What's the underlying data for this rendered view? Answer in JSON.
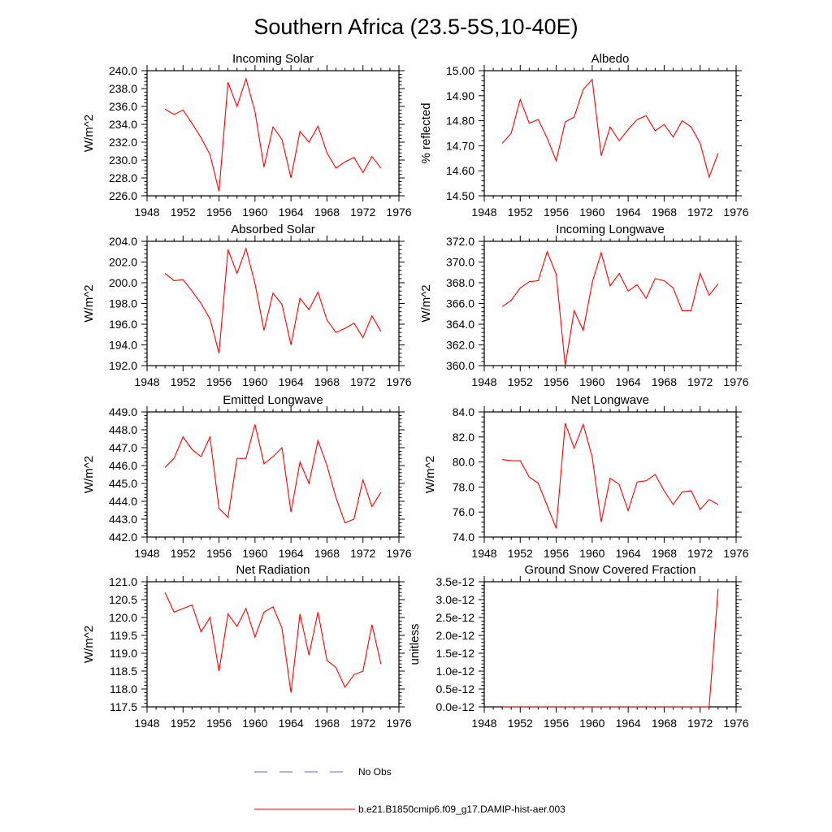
{
  "title": "Southern Africa (23.5-5S,10-40E)",
  "chart_data": [
    {
      "type": "line",
      "title": "Incoming Solar",
      "ylabel": "W/m^2",
      "xlim": [
        1948,
        1976
      ],
      "ylim": [
        226,
        240
      ],
      "xticks": [
        1948,
        1952,
        1956,
        1960,
        1964,
        1968,
        1972,
        1976
      ],
      "xtick_labels": [
        "1948",
        "1952",
        "1956",
        "1960",
        "1964",
        "1968",
        "1972",
        "1976"
      ],
      "yticks": [
        226,
        228,
        230,
        232,
        234,
        236,
        238,
        240
      ],
      "ytick_labels": [
        "226.0",
        "228.0",
        "230.0",
        "232.0",
        "234.0",
        "236.0",
        "238.0",
        "240.0"
      ],
      "series": [
        {
          "name": "b.e21.B1850cmip6.f09_g17.DAMIP-hist-aer.003",
          "color": "#ff0000",
          "x": [
            1950,
            1951,
            1952,
            1953,
            1954,
            1955,
            1956,
            1957,
            1958,
            1959,
            1960,
            1961,
            1962,
            1963,
            1964,
            1965,
            1966,
            1967,
            1968,
            1969,
            1970,
            1971,
            1972,
            1973,
            1974
          ],
          "y": [
            235.7,
            235.1,
            235.6,
            234.1,
            232.5,
            230.6,
            226.5,
            238.7,
            236.0,
            239.1,
            235.4,
            229.2,
            233.7,
            232.3,
            228.0,
            233.2,
            232.0,
            233.8,
            230.8,
            229.1,
            229.8,
            230.3,
            228.6,
            230.4,
            229.1
          ]
        }
      ]
    },
    {
      "type": "line",
      "title": "Albedo",
      "ylabel": "% reflected",
      "xlim": [
        1948,
        1976
      ],
      "ylim": [
        14.5,
        15.0
      ],
      "xticks": [
        1948,
        1952,
        1956,
        1960,
        1964,
        1968,
        1972,
        1976
      ],
      "xtick_labels": [
        "1948",
        "1952",
        "1956",
        "1960",
        "1964",
        "1968",
        "1972",
        "1976"
      ],
      "yticks": [
        14.5,
        14.6,
        14.7,
        14.8,
        14.9,
        15.0
      ],
      "ytick_labels": [
        "14.50",
        "14.60",
        "14.70",
        "14.80",
        "14.90",
        "15.00"
      ],
      "series": [
        {
          "name": "b.e21.B1850cmip6.f09_g17.DAMIP-hist-aer.003",
          "color": "#ff0000",
          "x": [
            1950,
            1951,
            1952,
            1953,
            1954,
            1955,
            1956,
            1957,
            1958,
            1959,
            1960,
            1961,
            1962,
            1963,
            1964,
            1965,
            1966,
            1967,
            1968,
            1969,
            1970,
            1971,
            1972,
            1973,
            1974
          ],
          "y": [
            14.71,
            14.75,
            14.885,
            14.79,
            14.805,
            14.73,
            14.64,
            14.795,
            14.815,
            14.925,
            14.965,
            14.66,
            14.775,
            14.72,
            14.765,
            14.805,
            14.82,
            14.76,
            14.785,
            14.735,
            14.8,
            14.775,
            14.71,
            14.575,
            14.67
          ]
        }
      ]
    },
    {
      "type": "line",
      "title": "Absorbed Solar",
      "ylabel": "W/m^2",
      "xlim": [
        1948,
        1976
      ],
      "ylim": [
        192,
        204
      ],
      "xticks": [
        1948,
        1952,
        1956,
        1960,
        1964,
        1968,
        1972,
        1976
      ],
      "xtick_labels": [
        "1948",
        "1952",
        "1956",
        "1960",
        "1964",
        "1968",
        "1972",
        "1976"
      ],
      "yticks": [
        192,
        194,
        196,
        198,
        200,
        202,
        204
      ],
      "ytick_labels": [
        "192.0",
        "194.0",
        "196.0",
        "198.0",
        "200.0",
        "202.0",
        "204.0"
      ],
      "series": [
        {
          "name": "b.e21.B1850cmip6.f09_g17.DAMIP-hist-aer.003",
          "color": "#ff0000",
          "x": [
            1950,
            1951,
            1952,
            1953,
            1954,
            1955,
            1956,
            1957,
            1958,
            1959,
            1960,
            1961,
            1962,
            1963,
            1964,
            1965,
            1966,
            1967,
            1968,
            1969,
            1970,
            1971,
            1972,
            1973,
            1974
          ],
          "y": [
            200.9,
            200.2,
            200.3,
            199.2,
            198.0,
            196.5,
            193.2,
            203.2,
            200.9,
            203.3,
            199.9,
            195.4,
            199.0,
            197.9,
            194.0,
            198.5,
            197.4,
            199.1,
            196.4,
            195.2,
            195.6,
            196.1,
            194.7,
            196.8,
            195.3
          ]
        }
      ]
    },
    {
      "type": "line",
      "title": "Incoming Longwave",
      "ylabel": "W/m^2",
      "xlim": [
        1948,
        1976
      ],
      "ylim": [
        360,
        372
      ],
      "xticks": [
        1948,
        1952,
        1956,
        1960,
        1964,
        1968,
        1972,
        1976
      ],
      "xtick_labels": [
        "1948",
        "1952",
        "1956",
        "1960",
        "1964",
        "1968",
        "1972",
        "1976"
      ],
      "yticks": [
        360,
        362,
        364,
        366,
        368,
        370,
        372
      ],
      "ytick_labels": [
        "360.0",
        "362.0",
        "364.0",
        "366.0",
        "368.0",
        "370.0",
        "372.0"
      ],
      "series": [
        {
          "name": "b.e21.B1850cmip6.f09_g17.DAMIP-hist-aer.003",
          "color": "#ff0000",
          "x": [
            1950,
            1951,
            1952,
            1953,
            1954,
            1955,
            1956,
            1957,
            1958,
            1959,
            1960,
            1961,
            1962,
            1963,
            1964,
            1965,
            1966,
            1967,
            1968,
            1969,
            1970,
            1971,
            1972,
            1973,
            1974
          ],
          "y": [
            365.7,
            366.3,
            367.5,
            368.1,
            368.2,
            371.0,
            368.8,
            360.0,
            365.3,
            363.4,
            368.0,
            370.9,
            367.7,
            368.9,
            367.2,
            367.8,
            366.5,
            368.4,
            368.2,
            367.5,
            365.3,
            365.3,
            368.9,
            366.8,
            367.9
          ]
        }
      ]
    },
    {
      "type": "line",
      "title": "Emitted Longwave",
      "ylabel": "W/m^2",
      "xlim": [
        1948,
        1976
      ],
      "ylim": [
        442,
        449
      ],
      "xticks": [
        1948,
        1952,
        1956,
        1960,
        1964,
        1968,
        1972,
        1976
      ],
      "xtick_labels": [
        "1948",
        "1952",
        "1956",
        "1960",
        "1964",
        "1968",
        "1972",
        "1976"
      ],
      "yticks": [
        442,
        443,
        444,
        445,
        446,
        447,
        448,
        449
      ],
      "ytick_labels": [
        "442.0",
        "443.0",
        "444.0",
        "445.0",
        "446.0",
        "447.0",
        "448.0",
        "449.0"
      ],
      "series": [
        {
          "name": "b.e21.B1850cmip6.f09_g17.DAMIP-hist-aer.003",
          "color": "#ff0000",
          "x": [
            1950,
            1951,
            1952,
            1953,
            1954,
            1955,
            1956,
            1957,
            1958,
            1959,
            1960,
            1961,
            1962,
            1963,
            1964,
            1965,
            1966,
            1967,
            1968,
            1969,
            1970,
            1971,
            1972,
            1973,
            1974
          ],
          "y": [
            445.9,
            446.4,
            447.6,
            446.9,
            446.5,
            447.6,
            443.6,
            443.1,
            446.4,
            446.4,
            448.3,
            446.1,
            446.5,
            447.0,
            443.4,
            446.2,
            445.0,
            447.4,
            446.0,
            444.2,
            442.8,
            443.0,
            445.2,
            443.7,
            444.5
          ]
        }
      ]
    },
    {
      "type": "line",
      "title": "Net Longwave",
      "ylabel": "W/m^2",
      "xlim": [
        1948,
        1976
      ],
      "ylim": [
        74,
        84
      ],
      "xticks": [
        1948,
        1952,
        1956,
        1960,
        1964,
        1968,
        1972,
        1976
      ],
      "xtick_labels": [
        "1948",
        "1952",
        "1956",
        "1960",
        "1964",
        "1968",
        "1972",
        "1976"
      ],
      "yticks": [
        74,
        76,
        78,
        80,
        82,
        84
      ],
      "ytick_labels": [
        "74.0",
        "76.0",
        "78.0",
        "80.0",
        "82.0",
        "84.0"
      ],
      "series": [
        {
          "name": "b.e21.B1850cmip6.f09_g17.DAMIP-hist-aer.003",
          "color": "#ff0000",
          "x": [
            1950,
            1951,
            1952,
            1953,
            1954,
            1955,
            1956,
            1957,
            1958,
            1959,
            1960,
            1961,
            1962,
            1963,
            1964,
            1965,
            1966,
            1967,
            1968,
            1969,
            1970,
            1971,
            1972,
            1973,
            1974
          ],
          "y": [
            80.2,
            80.1,
            80.1,
            78.8,
            78.3,
            76.5,
            74.7,
            83.1,
            81.1,
            83.0,
            80.4,
            75.2,
            78.7,
            78.2,
            76.1,
            78.4,
            78.5,
            79.0,
            77.7,
            76.6,
            77.6,
            77.7,
            76.2,
            77.0,
            76.6
          ]
        }
      ]
    },
    {
      "type": "line",
      "title": "Net Radiation",
      "ylabel": "W/m^2",
      "xlim": [
        1948,
        1976
      ],
      "ylim": [
        117.5,
        121.0
      ],
      "xticks": [
        1948,
        1952,
        1956,
        1960,
        1964,
        1968,
        1972,
        1976
      ],
      "xtick_labels": [
        "1948",
        "1952",
        "1956",
        "1960",
        "1964",
        "1968",
        "1972",
        "1976"
      ],
      "yticks": [
        117.5,
        118.0,
        118.5,
        119.0,
        119.5,
        120.0,
        120.5,
        121.0
      ],
      "ytick_labels": [
        "117.5",
        "118.0",
        "118.5",
        "119.0",
        "119.5",
        "120.0",
        "120.5",
        "121.0"
      ],
      "series": [
        {
          "name": "b.e21.B1850cmip6.f09_g17.DAMIP-hist-aer.003",
          "color": "#ff0000",
          "x": [
            1950,
            1951,
            1952,
            1953,
            1954,
            1955,
            1956,
            1957,
            1958,
            1959,
            1960,
            1961,
            1962,
            1963,
            1964,
            1965,
            1966,
            1967,
            1968,
            1969,
            1970,
            1971,
            1972,
            1973,
            1974
          ],
          "y": [
            120.7,
            120.15,
            120.25,
            120.35,
            119.6,
            120.0,
            118.5,
            120.1,
            119.75,
            120.25,
            119.45,
            120.15,
            120.3,
            119.7,
            117.9,
            120.1,
            118.95,
            120.15,
            118.8,
            118.6,
            118.05,
            118.4,
            118.5,
            119.8,
            118.7
          ]
        }
      ]
    },
    {
      "type": "line",
      "title": "Ground Snow Covered Fraction",
      "ylabel": "unitless",
      "xlim": [
        1948,
        1976
      ],
      "ylim": [
        0,
        3.5e-12
      ],
      "xticks": [
        1948,
        1952,
        1956,
        1960,
        1964,
        1968,
        1972,
        1976
      ],
      "xtick_labels": [
        "1948",
        "1952",
        "1956",
        "1960",
        "1964",
        "1968",
        "1972",
        "1976"
      ],
      "yticks": [
        0,
        5e-13,
        1e-12,
        1.5e-12,
        2e-12,
        2.5e-12,
        3e-12,
        3.5e-12
      ],
      "ytick_labels": [
        "0.0e-12",
        "0.5e-12",
        "1.0e-12",
        "1.5e-12",
        "2.0e-12",
        "2.5e-12",
        "3.0e-12",
        "3.5e-12"
      ],
      "series": [
        {
          "name": "b.e21.B1850cmip6.f09_g17.DAMIP-hist-aer.003",
          "color": "#ff0000",
          "x": [
            1950,
            1951,
            1952,
            1953,
            1954,
            1955,
            1956,
            1957,
            1958,
            1959,
            1960,
            1961,
            1962,
            1963,
            1964,
            1965,
            1966,
            1967,
            1968,
            1969,
            1970,
            1971,
            1972,
            1973,
            1974
          ],
          "y": [
            0,
            0,
            0,
            0,
            0,
            0,
            0,
            0,
            0,
            0,
            0,
            0,
            0,
            0,
            0,
            0,
            0,
            0,
            0,
            0,
            0,
            0,
            0,
            0,
            3.3e-12
          ]
        }
      ]
    }
  ],
  "legend": [
    {
      "label": "No Obs",
      "color": "#6666cc",
      "style": "dashed"
    },
    {
      "label": "b.e21.B1850cmip6.f09_g17.DAMIP-hist-aer.003",
      "color": "#ff0000",
      "style": "solid"
    }
  ]
}
